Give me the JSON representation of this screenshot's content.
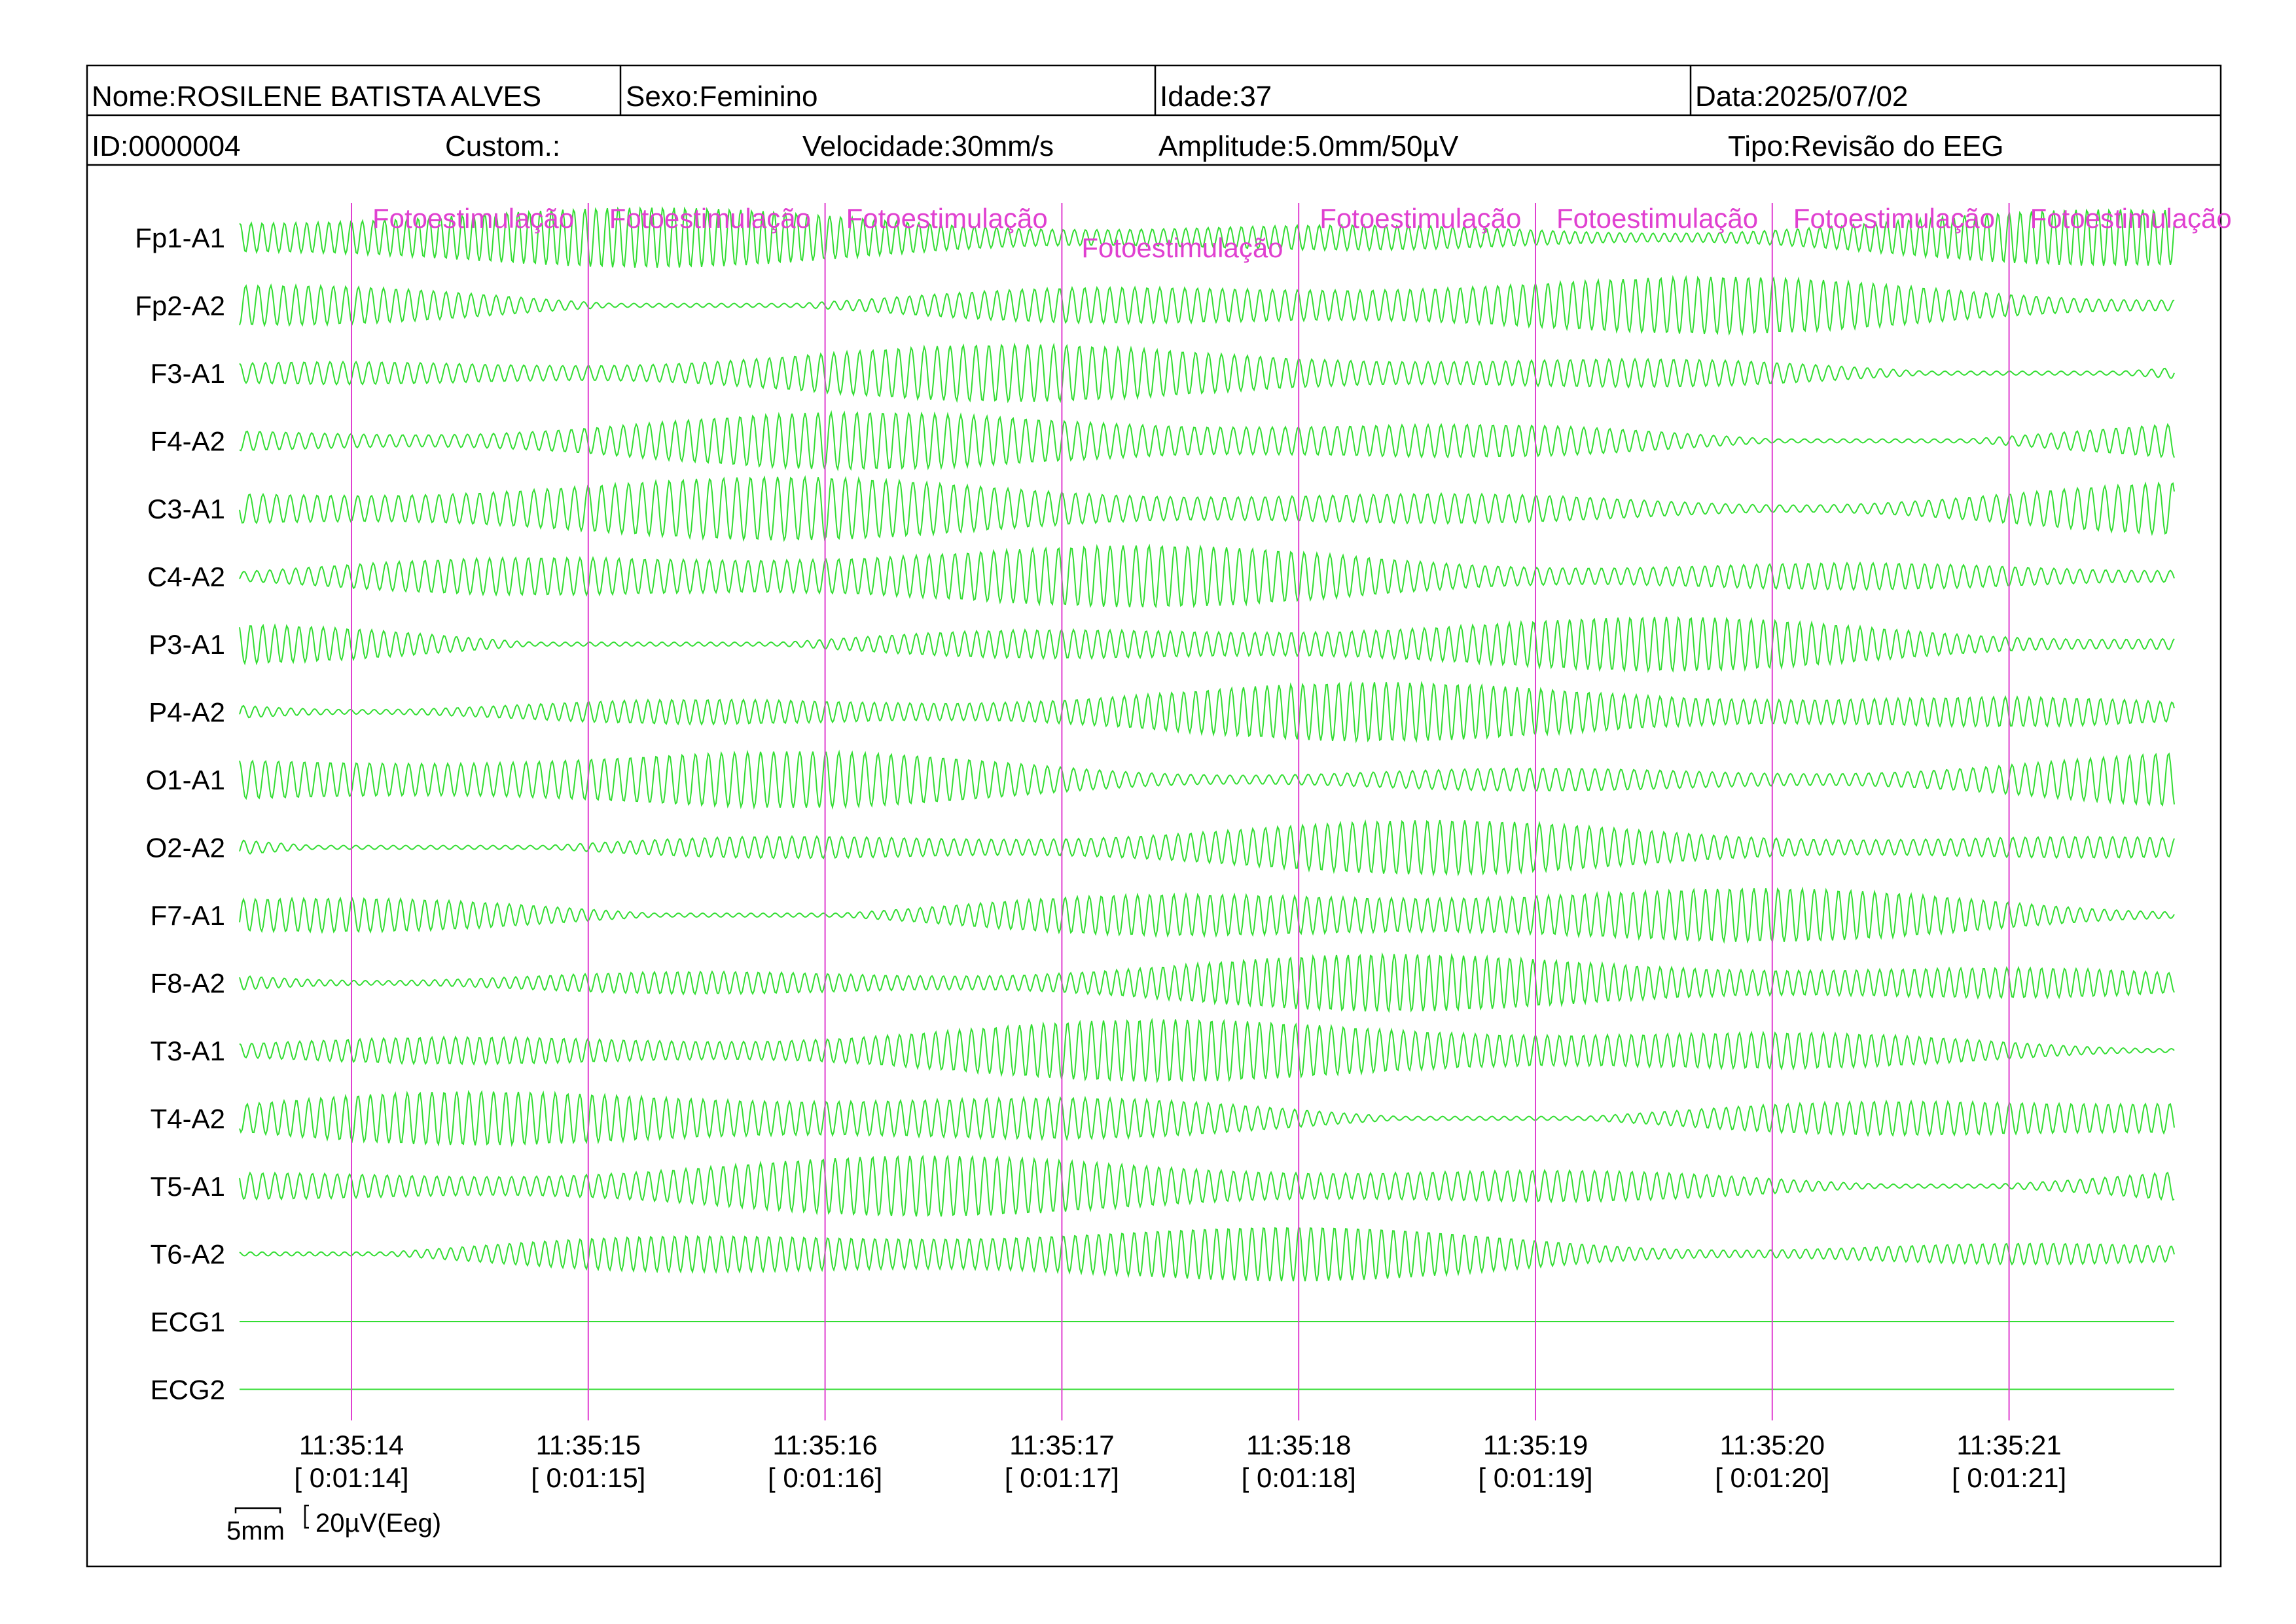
{
  "header": {
    "nome": "Nome:ROSILENE BATISTA ALVES",
    "sexo": "Sexo:Feminino",
    "idade": "Idade:37",
    "data": "Data:2025/07/02",
    "id": "ID:0000004",
    "custom": "Custom.:",
    "velocidade": "Velocidade:30mm/s",
    "amplitude": "Amplitude:5.0mm/50µV",
    "tipo": "Tipo:Revisão do EEG"
  },
  "colors": {
    "trace": "#33dd33",
    "marker": "#e040d0",
    "border": "#000000"
  },
  "chart_data": {
    "type": "line",
    "channels": [
      "Fp1-A1",
      "Fp2-A2",
      "F3-A1",
      "F4-A2",
      "C3-A1",
      "C4-A2",
      "P3-A1",
      "P4-A2",
      "O1-A1",
      "O2-A2",
      "F7-A1",
      "F8-A2",
      "T3-A1",
      "T4-A2",
      "T5-A1",
      "T6-A2",
      "ECG1",
      "ECG2"
    ],
    "time_ticks": [
      {
        "clock": "11:35:14",
        "elapsed": "[ 0:01:14]"
      },
      {
        "clock": "11:35:15",
        "elapsed": "[ 0:01:15]"
      },
      {
        "clock": "11:35:16",
        "elapsed": "[ 0:01:16]"
      },
      {
        "clock": "11:35:17",
        "elapsed": "[ 0:01:17]"
      },
      {
        "clock": "11:35:18",
        "elapsed": "[ 0:01:18]"
      },
      {
        "clock": "11:35:19",
        "elapsed": "[ 0:01:19]"
      },
      {
        "clock": "11:35:20",
        "elapsed": "[ 0:01:20]"
      },
      {
        "clock": "11:35:21",
        "elapsed": "[ 0:01:21]"
      }
    ],
    "events": [
      {
        "label": "Fotoestimulação",
        "time": "11:35:14"
      },
      {
        "label": "Fotoestimulação",
        "time": "11:35:15"
      },
      {
        "label": "Fotoestimulação",
        "time": "11:35:16"
      },
      {
        "label": "Fotoestimulação",
        "time": "11:35:17"
      },
      {
        "label": "Fotoestimulação",
        "time": "11:35:18"
      },
      {
        "label": "Fotoestimulação",
        "time": "11:35:19"
      },
      {
        "label": "Fotoestimulação",
        "time": "11:35:20"
      },
      {
        "label": "Fotoestimulação",
        "time": "11:35:21"
      }
    ],
    "time_scale_label": "5mm",
    "amplitude_scale_label": "20µV(Eeg)"
  }
}
